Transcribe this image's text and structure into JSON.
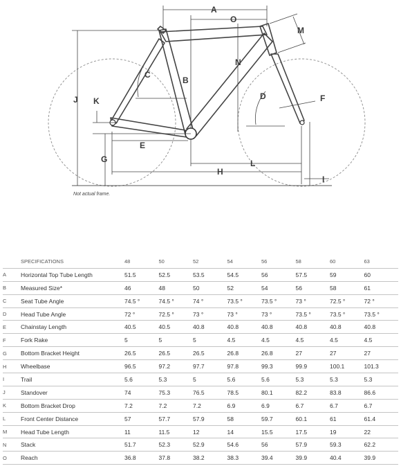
{
  "diagram": {
    "note": "Not actual frame.",
    "labels": [
      "A",
      "O",
      "M",
      "N",
      "B",
      "C",
      "J",
      "K",
      "D",
      "F",
      "E",
      "G",
      "H",
      "L",
      "I"
    ]
  },
  "specs": {
    "header_label": "SPECIFICATIONS",
    "sizes": [
      "48",
      "50",
      "52",
      "54",
      "56",
      "58",
      "60",
      "63"
    ],
    "rows": [
      {
        "letter": "A",
        "name": "Horizontal Top Tube Length",
        "values": [
          "51.5",
          "52.5",
          "53.5",
          "54.5",
          "56",
          "57.5",
          "59",
          "60"
        ]
      },
      {
        "letter": "B",
        "name": "Measured Size*",
        "values": [
          "46",
          "48",
          "50",
          "52",
          "54",
          "56",
          "58",
          "61"
        ]
      },
      {
        "letter": "C",
        "name": "Seat Tube Angle",
        "values": [
          "74.5 °",
          "74.5 °",
          "74 °",
          "73.5 °",
          "73.5 °",
          "73 °",
          "72.5 °",
          "72 °"
        ]
      },
      {
        "letter": "D",
        "name": "Head Tube Angle",
        "values": [
          "72 °",
          "72.5 °",
          "73 °",
          "73 °",
          "73 °",
          "73.5 °",
          "73.5 °",
          "73.5 °"
        ]
      },
      {
        "letter": "E",
        "name": "Chainstay Length",
        "values": [
          "40.5",
          "40.5",
          "40.8",
          "40.8",
          "40.8",
          "40.8",
          "40.8",
          "40.8"
        ]
      },
      {
        "letter": "F",
        "name": "Fork Rake",
        "values": [
          "5",
          "5",
          "5",
          "4.5",
          "4.5",
          "4.5",
          "4.5",
          "4.5"
        ]
      },
      {
        "letter": "G",
        "name": "Bottom Bracket Height",
        "values": [
          "26.5",
          "26.5",
          "26.5",
          "26.8",
          "26.8",
          "27",
          "27",
          "27"
        ]
      },
      {
        "letter": "H",
        "name": "Wheelbase",
        "values": [
          "96.5",
          "97.2",
          "97.7",
          "97.8",
          "99.3",
          "99.9",
          "100.1",
          "101.3"
        ]
      },
      {
        "letter": "I",
        "name": "Trail",
        "values": [
          "5.6",
          "5.3",
          "5",
          "5.6",
          "5.6",
          "5.3",
          "5.3",
          "5.3"
        ]
      },
      {
        "letter": "J",
        "name": "Standover",
        "values": [
          "74",
          "75.3",
          "76.5",
          "78.5",
          "80.1",
          "82.2",
          "83.8",
          "86.6"
        ]
      },
      {
        "letter": "K",
        "name": "Bottom Bracket Drop",
        "values": [
          "7.2",
          "7.2",
          "7.2",
          "6.9",
          "6.9",
          "6.7",
          "6.7",
          "6.7"
        ]
      },
      {
        "letter": "L",
        "name": "Front Center Distance",
        "values": [
          "57",
          "57.7",
          "57.9",
          "58",
          "59.7",
          "60.1",
          "61",
          "61.4"
        ]
      },
      {
        "letter": "M",
        "name": "Head Tube Length",
        "values": [
          "11",
          "11.5",
          "12",
          "14",
          "15.5",
          "17.5",
          "19",
          "22"
        ]
      },
      {
        "letter": "N",
        "name": "Stack",
        "values": [
          "51.7",
          "52.3",
          "52.9",
          "54.6",
          "56",
          "57.9",
          "59.3",
          "62.2"
        ]
      },
      {
        "letter": "O",
        "name": "Reach",
        "values": [
          "36.8",
          "37.8",
          "38.2",
          "38.3",
          "39.4",
          "39.9",
          "40.4",
          "39.9"
        ]
      }
    ]
  }
}
